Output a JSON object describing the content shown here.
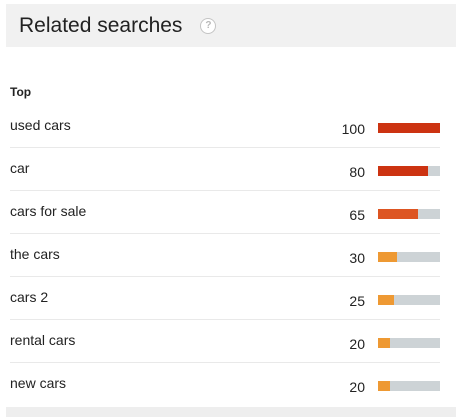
{
  "header": {
    "title": "Related searches",
    "help_glyph": "?"
  },
  "section": {
    "label": "Top"
  },
  "searches": [
    {
      "term": "used cars",
      "value": "100",
      "score": 100,
      "color": "#cc3311"
    },
    {
      "term": "car",
      "value": "80",
      "score": 80,
      "color": "#cc3311"
    },
    {
      "term": "cars for sale",
      "value": "65",
      "score": 65,
      "color": "#dd5522"
    },
    {
      "term": "the cars",
      "value": "30",
      "score": 30,
      "color": "#ee9933"
    },
    {
      "term": "cars 2",
      "value": "25",
      "score": 25,
      "color": "#ee9933"
    },
    {
      "term": "rental cars",
      "value": "20",
      "score": 20,
      "color": "#ee9933"
    },
    {
      "term": "new cars",
      "value": "20",
      "score": 20,
      "color": "#ee9933"
    }
  ],
  "colors": {
    "bar_track": "#cdd3d6",
    "header_bg": "#f1f1f1"
  },
  "icons": {
    "help": "question-circle-icon"
  }
}
